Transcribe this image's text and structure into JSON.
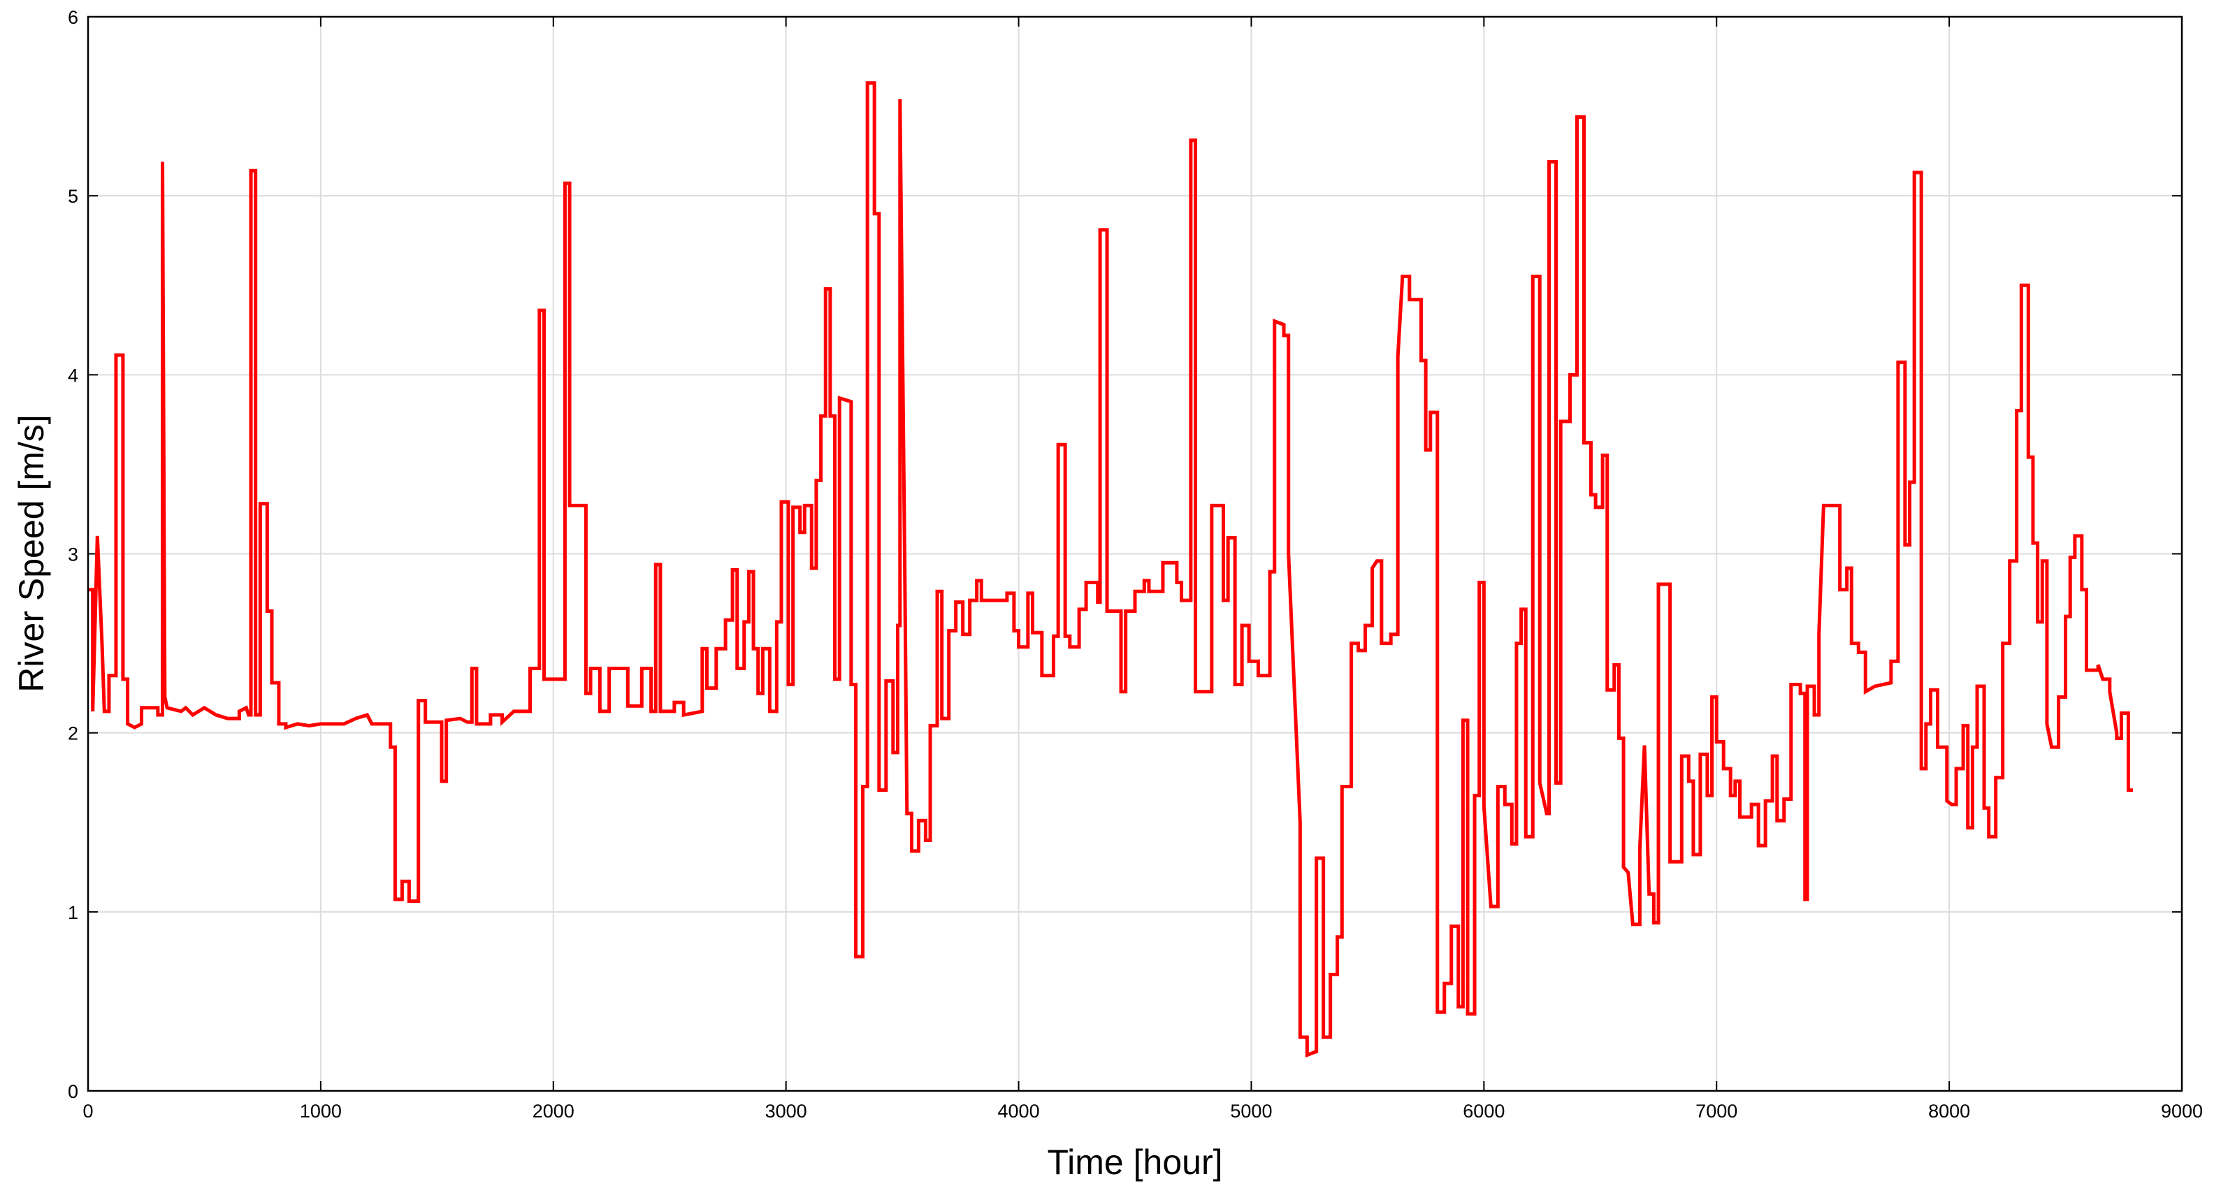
{
  "chart_data": {
    "type": "line",
    "xlabel": "Time [hour]",
    "ylabel": "River Speed [m/s]",
    "xlim": [
      0,
      9000
    ],
    "xticks": [
      0,
      1000,
      2000,
      3000,
      4000,
      5000,
      6000,
      7000,
      8000,
      9000
    ],
    "ylim": [
      0,
      6
    ],
    "yticks": [
      0,
      1,
      2,
      3,
      4,
      5,
      6
    ],
    "grid": true,
    "color": "#ff0000",
    "x": [
      0,
      20,
      20,
      40,
      60,
      70,
      90,
      90,
      120,
      120,
      150,
      150,
      170,
      170,
      200,
      230,
      230,
      300,
      300,
      320,
      320,
      330,
      340,
      400,
      420,
      450,
      500,
      550,
      600,
      650,
      650,
      680,
      690,
      700,
      700,
      720,
      720,
      740,
      740,
      770,
      770,
      790,
      790,
      820,
      820,
      850,
      850,
      900,
      950,
      1000,
      1100,
      1150,
      1200,
      1220,
      1300,
      1300,
      1320,
      1320,
      1350,
      1350,
      1380,
      1380,
      1420,
      1420,
      1450,
      1450,
      1520,
      1520,
      1540,
      1540,
      1600,
      1630,
      1650,
      1650,
      1670,
      1670,
      1730,
      1730,
      1780,
      1780,
      1830,
      1900,
      1900,
      1940,
      1940,
      1960,
      1960,
      2050,
      2050,
      2070,
      2070,
      2140,
      2140,
      2160,
      2160,
      2200,
      2200,
      2240,
      2240,
      2320,
      2320,
      2380,
      2380,
      2420,
      2420,
      2440,
      2440,
      2460,
      2460,
      2520,
      2520,
      2560,
      2560,
      2640,
      2640,
      2660,
      2660,
      2700,
      2700,
      2740,
      2740,
      2770,
      2770,
      2790,
      2790,
      2820,
      2820,
      2840,
      2840,
      2860,
      2860,
      2880,
      2880,
      2900,
      2900,
      2930,
      2930,
      2960,
      2960,
      2980,
      2980,
      3010,
      3010,
      3030,
      3030,
      3060,
      3060,
      3080,
      3080,
      3110,
      3110,
      3130,
      3130,
      3150,
      3150,
      3170,
      3170,
      3190,
      3190,
      3210,
      3210,
      3230,
      3230,
      3280,
      3280,
      3300,
      3300,
      3330,
      3330,
      3350,
      3350,
      3380,
      3380,
      3400,
      3400,
      3430,
      3430,
      3460,
      3460,
      3480,
      3480,
      3490,
      3490,
      3510,
      3520,
      3540,
      3540,
      3570,
      3570,
      3600,
      3600,
      3620,
      3620,
      3650,
      3650,
      3670,
      3670,
      3700,
      3700,
      3730,
      3730,
      3760,
      3760,
      3790,
      3790,
      3820,
      3820,
      3840,
      3840,
      3950,
      3950,
      3980,
      3980,
      4000,
      4000,
      4040,
      4040,
      4060,
      4060,
      4100,
      4100,
      4150,
      4150,
      4170,
      4170,
      4200,
      4200,
      4220,
      4220,
      4260,
      4260,
      4290,
      4290,
      4340,
      4340,
      4350,
      4350,
      4380,
      4380,
      4440,
      4440,
      4460,
      4460,
      4500,
      4500,
      4540,
      4540,
      4560,
      4560,
      4620,
      4620,
      4680,
      4680,
      4700,
      4700,
      4740,
      4740,
      4760,
      4760,
      4830,
      4830,
      4880,
      4880,
      4900,
      4900,
      4930,
      4930,
      4960,
      4960,
      4990,
      4990,
      5030,
      5030,
      5080,
      5080,
      5100,
      5100,
      5140,
      5140,
      5160,
      5160,
      5210,
      5210,
      5240,
      5240,
      5280,
      5280,
      5310,
      5310,
      5340,
      5340,
      5370,
      5370,
      5390,
      5390,
      5430,
      5430,
      5460,
      5460,
      5490,
      5490,
      5520,
      5520,
      5540,
      5560,
      5560,
      5600,
      5600,
      5630,
      5630,
      5650,
      5680,
      5680,
      5730,
      5730,
      5750,
      5750,
      5770,
      5770,
      5800,
      5800,
      5830,
      5830,
      5860,
      5860,
      5890,
      5890,
      5910,
      5910,
      5930,
      5930,
      5960,
      5960,
      5980,
      5980,
      6000,
      6000,
      6030,
      6060,
      6060,
      6090,
      6090,
      6120,
      6120,
      6140,
      6140,
      6160,
      6160,
      6180,
      6180,
      6210,
      6210,
      6240,
      6240,
      6270,
      6280,
      6280,
      6310,
      6310,
      6330,
      6330,
      6370,
      6370,
      6400,
      6400,
      6430,
      6430,
      6460,
      6460,
      6480,
      6480,
      6510,
      6510,
      6530,
      6530,
      6560,
      6560,
      6580,
      6580,
      6600,
      6600,
      6620,
      6640,
      6670,
      6670,
      6690,
      6710,
      6730,
      6730,
      6750,
      6750,
      6800,
      6800,
      6850,
      6850,
      6880,
      6880,
      6900,
      6900,
      6930,
      6930,
      6960,
      6960,
      6980,
      6980,
      7000,
      7000,
      7030,
      7030,
      7060,
      7060,
      7080,
      7080,
      7100,
      7100,
      7150,
      7150,
      7180,
      7180,
      7210,
      7210,
      7240,
      7240,
      7260,
      7260,
      7290,
      7290,
      7320,
      7320,
      7360,
      7360,
      7380,
      7380,
      7390,
      7390,
      7420,
      7420,
      7440,
      7440,
      7460,
      7530,
      7530,
      7560,
      7560,
      7580,
      7580,
      7610,
      7610,
      7640,
      7640,
      7680,
      7750,
      7750,
      7780,
      7780,
      7810,
      7810,
      7830,
      7830,
      7850,
      7850,
      7880,
      7880,
      7900,
      7900,
      7920,
      7920,
      7950,
      7950,
      7990,
      7990,
      8010,
      8030,
      8030,
      8060,
      8060,
      8080,
      8080,
      8100,
      8100,
      8120,
      8120,
      8150,
      8150,
      8170,
      8170,
      8200,
      8200,
      8230,
      8230,
      8260,
      8260,
      8290,
      8290,
      8310,
      8310,
      8340,
      8340,
      8360,
      8360,
      8380,
      8380,
      8400,
      8400,
      8420,
      8420,
      8440,
      8470,
      8470,
      8500,
      8500,
      8520,
      8520,
      8540,
      8540,
      8570,
      8570,
      8590,
      8590,
      8640,
      8640,
      8660,
      8690,
      8690,
      8720,
      8720,
      8740,
      8740,
      8770,
      8770,
      8790
    ],
    "values": [
      2.8,
      2.8,
      2.12,
      3.1,
      2.5,
      2.12,
      2.12,
      2.32,
      2.32,
      4.11,
      4.11,
      2.3,
      2.3,
      2.05,
      2.03,
      2.05,
      2.14,
      2.14,
      2.1,
      2.1,
      5.19,
      2.2,
      2.14,
      2.12,
      2.14,
      2.1,
      2.14,
      2.1,
      2.08,
      2.08,
      2.12,
      2.14,
      2.1,
      2.1,
      5.14,
      5.14,
      2.1,
      2.1,
      3.28,
      3.28,
      2.68,
      2.68,
      2.28,
      2.28,
      2.05,
      2.05,
      2.03,
      2.05,
      2.04,
      2.05,
      2.05,
      2.08,
      2.1,
      2.05,
      2.05,
      1.92,
      1.92,
      1.07,
      1.07,
      1.17,
      1.17,
      1.06,
      1.06,
      2.18,
      2.18,
      2.06,
      2.06,
      1.73,
      1.73,
      2.07,
      2.08,
      2.06,
      2.06,
      2.36,
      2.36,
      2.05,
      2.05,
      2.1,
      2.1,
      2.06,
      2.12,
      2.12,
      2.36,
      2.36,
      4.36,
      4.36,
      2.3,
      2.3,
      5.07,
      5.07,
      3.27,
      3.27,
      2.22,
      2.22,
      2.36,
      2.36,
      2.12,
      2.12,
      2.36,
      2.36,
      2.15,
      2.15,
      2.36,
      2.36,
      2.12,
      2.12,
      2.94,
      2.94,
      2.12,
      2.12,
      2.17,
      2.17,
      2.1,
      2.12,
      2.47,
      2.47,
      2.25,
      2.25,
      2.47,
      2.47,
      2.63,
      2.63,
      2.91,
      2.91,
      2.36,
      2.36,
      2.62,
      2.62,
      2.9,
      2.9,
      2.47,
      2.47,
      2.22,
      2.22,
      2.47,
      2.47,
      2.12,
      2.12,
      2.62,
      2.62,
      3.29,
      3.29,
      2.27,
      2.27,
      3.26,
      3.26,
      3.12,
      3.12,
      3.27,
      3.27,
      2.92,
      2.92,
      3.41,
      3.41,
      3.77,
      3.77,
      4.48,
      4.48,
      3.77,
      3.77,
      2.3,
      2.3,
      3.87,
      3.85,
      2.27,
      2.27,
      0.75,
      0.75,
      1.7,
      1.7,
      5.63,
      5.63,
      4.9,
      4.9,
      1.68,
      1.68,
      2.29,
      2.29,
      1.89,
      1.89,
      2.6,
      2.6,
      5.54,
      3.0,
      1.55,
      1.55,
      1.34,
      1.34,
      1.51,
      1.51,
      1.4,
      1.4,
      2.04,
      2.04,
      2.79,
      2.79,
      2.08,
      2.08,
      2.57,
      2.57,
      2.73,
      2.73,
      2.55,
      2.55,
      2.74,
      2.74,
      2.85,
      2.85,
      2.74,
      2.74,
      2.78,
      2.78,
      2.57,
      2.57,
      2.48,
      2.48,
      2.78,
      2.78,
      2.56,
      2.56,
      2.32,
      2.32,
      2.54,
      2.54,
      3.61,
      3.61,
      2.54,
      2.54,
      2.48,
      2.48,
      2.69,
      2.69,
      2.84,
      2.84,
      2.73,
      2.73,
      4.81,
      4.81,
      2.68,
      2.68,
      2.23,
      2.23,
      2.68,
      2.68,
      2.79,
      2.79,
      2.85,
      2.85,
      2.79,
      2.79,
      2.95,
      2.95,
      2.84,
      2.84,
      2.74,
      2.74,
      5.31,
      5.31,
      2.23,
      2.23,
      3.27,
      3.27,
      2.74,
      2.74,
      3.09,
      3.09,
      2.27,
      2.27,
      2.6,
      2.6,
      2.4,
      2.4,
      2.32,
      2.32,
      2.9,
      2.9,
      4.3,
      4.28,
      4.22,
      4.22,
      3.0,
      1.5,
      0.3,
      0.3,
      0.2,
      0.22,
      1.3,
      1.3,
      0.3,
      0.3,
      0.65,
      0.65,
      0.86,
      0.86,
      1.7,
      1.7,
      2.5,
      2.5,
      2.46,
      2.46,
      2.6,
      2.6,
      2.92,
      2.96,
      2.96,
      2.5,
      2.5,
      2.55,
      2.55,
      4.1,
      4.55,
      4.55,
      4.42,
      4.42,
      4.08,
      4.08,
      3.58,
      3.58,
      3.79,
      3.79,
      0.44,
      0.44,
      0.6,
      0.6,
      0.92,
      0.92,
      0.47,
      0.47,
      2.07,
      2.07,
      0.43,
      0.43,
      1.65,
      1.65,
      2.84,
      2.84,
      1.59,
      1.03,
      1.03,
      1.7,
      1.7,
      1.6,
      1.6,
      1.38,
      1.38,
      2.5,
      2.5,
      2.69,
      2.69,
      1.42,
      1.42,
      4.55,
      4.55,
      1.72,
      1.55,
      1.55,
      5.19,
      5.19,
      1.72,
      1.72,
      3.74,
      3.74,
      4.0,
      4.0,
      5.44,
      5.44,
      3.62,
      3.62,
      3.33,
      3.33,
      3.26,
      3.26,
      3.55,
      3.55,
      2.24,
      2.24,
      2.38,
      2.38,
      1.97,
      1.97,
      1.25,
      1.22,
      0.93,
      0.93,
      1.35,
      1.93,
      1.1,
      1.1,
      0.94,
      0.94,
      2.83,
      2.83,
      1.28,
      1.28,
      1.87,
      1.87,
      1.73,
      1.73,
      1.32,
      1.32,
      1.88,
      1.88,
      1.65,
      1.65,
      2.2,
      2.2,
      1.95,
      1.95,
      1.8,
      1.8,
      1.65,
      1.65,
      1.73,
      1.73,
      1.53,
      1.53,
      1.6,
      1.6,
      1.37,
      1.37,
      1.62,
      1.62,
      1.87,
      1.87,
      1.51,
      1.51,
      1.63,
      1.63,
      2.27,
      2.27,
      2.22,
      2.22,
      1.07,
      1.07,
      2.26,
      2.26,
      2.1,
      2.1,
      2.55,
      3.27,
      3.27,
      2.8,
      2.8,
      2.92,
      2.92,
      2.5,
      2.5,
      2.45,
      2.45,
      2.23,
      2.26,
      2.28,
      2.4,
      2.4,
      4.07,
      4.07,
      3.05,
      3.05,
      3.4,
      3.4,
      5.13,
      5.13,
      1.8,
      1.8,
      2.05,
      2.05,
      2.24,
      2.24,
      1.92,
      1.92,
      1.62,
      1.6,
      1.6,
      1.8,
      1.8,
      2.04,
      2.04,
      1.47,
      1.47,
      1.92,
      1.92,
      2.26,
      2.26,
      1.58,
      1.58,
      1.42,
      1.42,
      1.75,
      1.75,
      2.5,
      2.5,
      2.96,
      2.96,
      3.8,
      3.8,
      4.5,
      4.5,
      3.54,
      3.54,
      3.06,
      3.06,
      2.62,
      2.62,
      2.96,
      2.96,
      2.05,
      1.92,
      1.92,
      2.2,
      2.2,
      2.65,
      2.65,
      2.98,
      2.98,
      3.1,
      3.1,
      2.8,
      2.8,
      2.35,
      2.35,
      2.38,
      2.3,
      2.3,
      2.23,
      2.0,
      1.97,
      1.97,
      2.11,
      2.11,
      1.68,
      1.68
    ]
  }
}
